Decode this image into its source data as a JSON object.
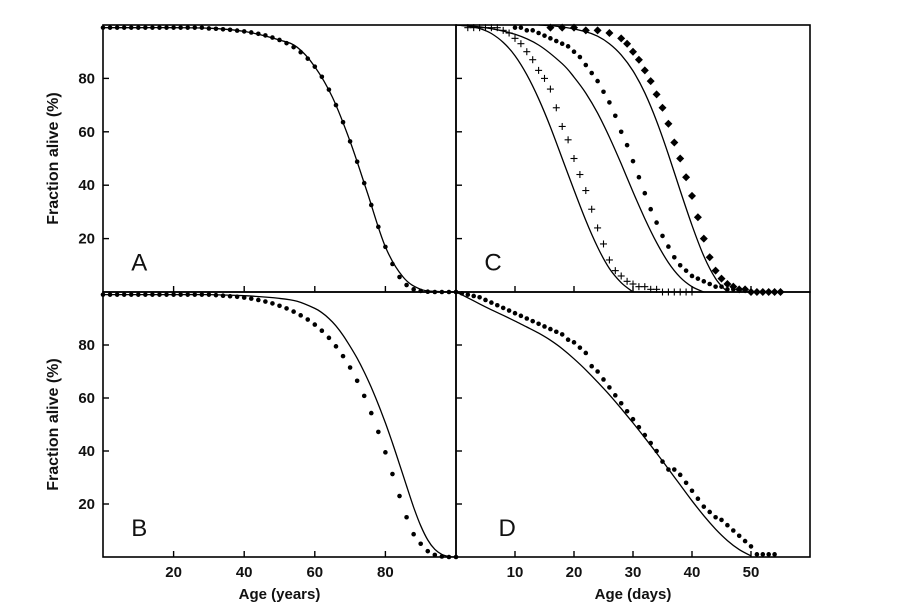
{
  "chart_data": [
    {
      "panel": "A",
      "type": "scatter",
      "label": "A",
      "xlabel": "",
      "ylabel": "Fraction alive (%)",
      "xlim": [
        0,
        100
      ],
      "ylim": [
        0,
        100
      ],
      "xticks": [
        20,
        40,
        60,
        80
      ],
      "yticks": [
        20,
        40,
        60,
        80
      ],
      "series": [
        {
          "kind": "points",
          "marker": "dot",
          "x": [
            0,
            2,
            4,
            6,
            8,
            10,
            12,
            14,
            16,
            18,
            20,
            22,
            24,
            26,
            28,
            30,
            32,
            34,
            36,
            38,
            40,
            42,
            44,
            46,
            48,
            50,
            52,
            54,
            56,
            58,
            60,
            62,
            64,
            66,
            68,
            70,
            72,
            74,
            76,
            78,
            80,
            82,
            84,
            86,
            88,
            90,
            92,
            94,
            96,
            98,
            100
          ],
          "y": [
            99,
            99,
            99,
            99,
            99,
            99,
            99,
            99,
            99,
            99,
            99,
            99,
            99,
            99,
            99,
            98.7,
            98.6,
            98.4,
            98.2,
            97.9,
            97.6,
            97.2,
            96.7,
            96.1,
            95.3,
            94.4,
            93.2,
            91.7,
            89.8,
            87.4,
            84.4,
            80.6,
            75.8,
            70.0,
            63.6,
            56.4,
            48.8,
            40.8,
            32.6,
            24.4,
            16.9,
            10.5,
            5.6,
            2.6,
            1.0,
            0.4,
            0.1,
            0,
            0,
            0,
            0
          ]
        },
        {
          "kind": "fit",
          "x": [
            0,
            10,
            20,
            30,
            40,
            50,
            55,
            60,
            65,
            70,
            75,
            80,
            85,
            90,
            95,
            100
          ],
          "y": [
            99,
            99,
            99,
            98.8,
            97.6,
            94.4,
            91.7,
            84.4,
            72.9,
            56.4,
            36.7,
            16.9,
            5.6,
            1.0,
            0.2,
            0
          ]
        }
      ]
    },
    {
      "panel": "B",
      "type": "scatter",
      "label": "B",
      "xlabel": "Age (years)",
      "ylabel": "Fraction alive (%)",
      "xlim": [
        0,
        100
      ],
      "ylim": [
        0,
        100
      ],
      "xticks": [
        20,
        40,
        60,
        80
      ],
      "yticks": [
        20,
        40,
        60,
        80
      ],
      "series": [
        {
          "kind": "points",
          "marker": "dot",
          "x": [
            0,
            2,
            4,
            6,
            8,
            10,
            12,
            14,
            16,
            18,
            20,
            22,
            24,
            26,
            28,
            30,
            32,
            34,
            36,
            38,
            40,
            42,
            44,
            46,
            48,
            50,
            52,
            54,
            56,
            58,
            60,
            62,
            64,
            66,
            68,
            70,
            72,
            74,
            76,
            78,
            80,
            82,
            84,
            86,
            88,
            90,
            92,
            94,
            96,
            98,
            100
          ],
          "y": [
            99,
            99,
            99,
            99,
            99,
            99,
            99,
            99,
            99,
            99,
            99,
            99,
            99,
            99,
            99,
            99,
            98.8,
            98.6,
            98.4,
            98.2,
            97.9,
            97.5,
            97.0,
            96.4,
            95.7,
            94.8,
            93.8,
            92.6,
            91.2,
            89.6,
            87.7,
            85.4,
            82.7,
            79.5,
            75.8,
            71.5,
            66.5,
            60.8,
            54.3,
            47.2,
            39.5,
            31.3,
            23.0,
            15.0,
            8.6,
            5.0,
            2.2,
            0.8,
            0.2,
            0,
            0
          ]
        },
        {
          "kind": "fit",
          "x": [
            0,
            10,
            20,
            30,
            40,
            50,
            55,
            60,
            62,
            64,
            66,
            68,
            70,
            72,
            74,
            76,
            78,
            80,
            82,
            84,
            86,
            88,
            90,
            92,
            94,
            96,
            98,
            100
          ],
          "y": [
            99,
            99,
            99,
            99,
            98.6,
            97.6,
            96.5,
            93.8,
            92.2,
            90.0,
            87.2,
            83.7,
            79.5,
            75.0,
            69.8,
            64.0,
            57.6,
            50.6,
            43.0,
            35.0,
            26.8,
            18.8,
            11.8,
            6.4,
            2.9,
            1.0,
            0.2,
            0
          ]
        }
      ]
    },
    {
      "panel": "C",
      "type": "scatter",
      "label": "C",
      "xlabel": "",
      "ylabel": "",
      "xlim": [
        0,
        60
      ],
      "ylim": [
        0,
        100
      ],
      "xticks": [
        10,
        20,
        30,
        40,
        50
      ],
      "yticks": [
        20,
        40,
        60,
        80
      ],
      "series": [
        {
          "kind": "points",
          "marker": "plus",
          "x": [
            2,
            3,
            4,
            5,
            6,
            7,
            8,
            9,
            10,
            11,
            12,
            13,
            14,
            15,
            16,
            17,
            18,
            19,
            20,
            21,
            22,
            23,
            24,
            25,
            26,
            27,
            28,
            29,
            30,
            31,
            32,
            33,
            34,
            35,
            36,
            37,
            38,
            39,
            40
          ],
          "y": [
            99,
            99,
            99,
            99,
            99,
            99,
            98,
            97,
            95,
            93,
            90,
            87,
            83,
            80,
            76,
            69,
            62,
            57,
            50,
            44,
            38,
            31,
            24,
            18,
            12,
            8,
            6,
            4,
            3,
            2,
            2,
            1,
            1,
            0,
            0,
            0,
            0,
            0,
            0
          ]
        },
        {
          "kind": "points",
          "marker": "dot",
          "x": [
            10,
            11,
            12,
            13,
            14,
            15,
            16,
            17,
            18,
            19,
            20,
            21,
            22,
            23,
            24,
            25,
            26,
            27,
            28,
            29,
            30,
            31,
            32,
            33,
            34,
            35,
            36,
            37,
            38,
            39,
            40,
            41,
            42,
            43,
            44,
            45,
            46,
            47,
            48
          ],
          "y": [
            99,
            99,
            98,
            98,
            97,
            96,
            95,
            94,
            93,
            92,
            90,
            88,
            85,
            82,
            79,
            75,
            71,
            66,
            60,
            55,
            49,
            43,
            37,
            31,
            26,
            21,
            17,
            13,
            10,
            8,
            6,
            5,
            4,
            3,
            2,
            2,
            1,
            1,
            1
          ]
        },
        {
          "kind": "points",
          "marker": "diamond",
          "x": [
            16,
            18,
            20,
            22,
            24,
            26,
            28,
            29,
            30,
            31,
            32,
            33,
            34,
            35,
            36,
            37,
            38,
            39,
            40,
            41,
            42,
            43,
            44,
            45,
            46,
            47,
            48,
            49,
            50,
            51,
            52,
            53,
            54,
            55
          ],
          "y": [
            99,
            99,
            99,
            98,
            98,
            97,
            95,
            93,
            90,
            87,
            83,
            79,
            74,
            69,
            63,
            56,
            50,
            43,
            36,
            28,
            20,
            13,
            8,
            5,
            3,
            2,
            1,
            1,
            0,
            0,
            0,
            0,
            0,
            0
          ]
        },
        {
          "kind": "fit",
          "x": [
            0,
            2,
            4,
            6,
            8,
            10,
            12,
            14,
            16,
            18,
            20,
            22,
            24,
            26,
            28,
            30
          ],
          "y": [
            100,
            99.6,
            98.7,
            96.8,
            93.5,
            88.5,
            81.4,
            72.4,
            61.8,
            50.0,
            38.2,
            26.8,
            16.8,
            8.8,
            3.5,
            0
          ]
        },
        {
          "kind": "fit",
          "x": [
            0,
            5,
            10,
            14,
            18,
            20,
            22,
            24,
            26,
            28,
            30,
            32,
            34,
            36,
            38,
            40,
            42
          ],
          "y": [
            100,
            99,
            96.5,
            92.5,
            85.5,
            80.5,
            74.5,
            67.0,
            58.0,
            48.0,
            37.5,
            27.5,
            18.5,
            11.0,
            5.5,
            2.0,
            0
          ]
        },
        {
          "kind": "fit",
          "x": [
            14,
            18,
            22,
            24,
            26,
            28,
            30,
            32,
            34,
            36,
            38,
            40,
            42,
            44,
            46
          ],
          "y": [
            100,
            99.3,
            97.5,
            95.8,
            93.0,
            88.8,
            82.8,
            74.6,
            64.0,
            51.5,
            38.0,
            25.0,
            13.5,
            5.0,
            0
          ]
        }
      ]
    },
    {
      "panel": "D",
      "type": "scatter",
      "label": "D",
      "xlabel": "Age (days)",
      "ylabel": "",
      "xlim": [
        0,
        60
      ],
      "ylim": [
        0,
        100
      ],
      "xticks": [
        10,
        20,
        30,
        40,
        50
      ],
      "yticks": [
        20,
        40,
        60,
        80
      ],
      "series": [
        {
          "kind": "points",
          "marker": "dot",
          "x": [
            0,
            1,
            2,
            3,
            4,
            5,
            6,
            7,
            8,
            9,
            10,
            11,
            12,
            13,
            14,
            15,
            16,
            17,
            18,
            19,
            20,
            21,
            22,
            23,
            24,
            25,
            26,
            27,
            28,
            29,
            30,
            31,
            32,
            33,
            34,
            35,
            36,
            37,
            38,
            39,
            40,
            41,
            42,
            43,
            44,
            45,
            46,
            47,
            48,
            49,
            50,
            51,
            52,
            53,
            54
          ],
          "y": [
            100,
            99.5,
            99,
            98.5,
            98,
            97,
            96,
            95,
            94,
            93,
            92,
            91,
            90,
            89,
            88,
            87,
            86,
            85,
            84,
            82,
            81,
            79,
            77,
            72,
            70,
            67,
            64,
            61,
            58,
            55,
            52,
            49,
            46,
            43,
            40,
            36,
            33,
            33,
            31,
            28,
            25,
            22,
            19,
            17,
            15,
            14,
            12,
            10,
            8,
            6,
            4,
            1,
            1,
            1,
            1
          ]
        },
        {
          "kind": "fit",
          "x": [
            0,
            2,
            4,
            6,
            8,
            10,
            12,
            14,
            16,
            18,
            20,
            22,
            24,
            26,
            28,
            30,
            32,
            34,
            36,
            38,
            40,
            42,
            44,
            46,
            48,
            50
          ],
          "y": [
            100,
            97.8,
            95.5,
            93.3,
            91.2,
            89.0,
            86.8,
            84.5,
            81.8,
            78.6,
            74.8,
            70.6,
            66.0,
            61.2,
            56.0,
            50.6,
            45.0,
            39.2,
            33.2,
            27.2,
            21.2,
            15.6,
            10.5,
            6.2,
            2.8,
            0.4
          ]
        }
      ]
    }
  ]
}
